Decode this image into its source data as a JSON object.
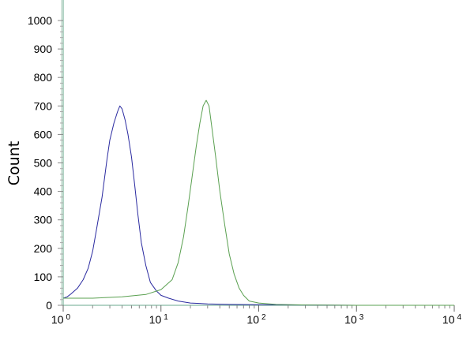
{
  "chart_data": {
    "type": "line",
    "title": "",
    "xlabel": "",
    "ylabel": "Count",
    "xscale": "log",
    "xlim": [
      1,
      10000
    ],
    "ylim": [
      0,
      1000
    ],
    "y_ticks": [
      "0",
      "100",
      "200",
      "300",
      "400",
      "500",
      "600",
      "700",
      "800",
      "900",
      "1000"
    ],
    "x_ticks": [
      {
        "base": "10",
        "exp": "0"
      },
      {
        "base": "10",
        "exp": "1"
      },
      {
        "base": "10",
        "exp": "2"
      },
      {
        "base": "10",
        "exp": "3"
      },
      {
        "base": "10",
        "exp": "4"
      }
    ],
    "grid": false,
    "legend": "none",
    "series": [
      {
        "color": "#2a2aa0",
        "x": [
          1.0,
          1.1,
          1.2,
          1.4,
          1.6,
          1.8,
          2.0,
          2.2,
          2.5,
          2.8,
          3.0,
          3.3,
          3.6,
          3.8,
          4.0,
          4.3,
          4.6,
          5.0,
          5.4,
          5.8,
          6.3,
          7.0,
          7.8,
          9.0,
          10,
          12,
          15,
          20,
          30,
          50,
          100,
          300,
          1000,
          10000
        ],
        "values": [
          25,
          30,
          40,
          60,
          90,
          130,
          190,
          270,
          380,
          510,
          580,
          640,
          680,
          700,
          690,
          650,
          600,
          520,
          420,
          320,
          220,
          140,
          80,
          50,
          35,
          25,
          15,
          8,
          5,
          3,
          2,
          1,
          0,
          0
        ]
      },
      {
        "color": "#5aa050",
        "x": [
          1.0,
          2.0,
          4.0,
          7.0,
          10,
          13,
          15,
          17,
          19,
          21,
          23,
          25,
          27,
          29,
          31,
          33,
          36,
          40,
          45,
          50,
          56,
          63,
          70,
          80,
          100,
          150,
          300,
          1000,
          10000
        ],
        "values": [
          25,
          25,
          30,
          38,
          55,
          90,
          150,
          240,
          350,
          460,
          560,
          640,
          700,
          720,
          700,
          630,
          530,
          400,
          280,
          180,
          110,
          60,
          35,
          15,
          8,
          3,
          1,
          0,
          0
        ]
      }
    ]
  }
}
